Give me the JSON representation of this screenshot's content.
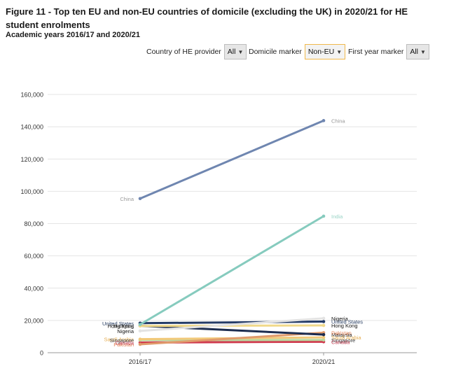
{
  "title": "Figure 11 - Top ten EU and non-EU countries of domicile (excluding the UK) in 2020/21 for HE student enrolments",
  "subtitle": "Academic years 2016/17 and 2020/21",
  "filters": [
    {
      "label": "Country of HE provider",
      "value": "All",
      "active": false
    },
    {
      "label": "Domicile marker",
      "value": "Non-EU",
      "active": true
    },
    {
      "label": "First year marker",
      "value": "All",
      "active": false
    }
  ],
  "chart_data": {
    "type": "line",
    "categories": [
      "2016/17",
      "2020/21"
    ],
    "ylim": [
      0,
      160000
    ],
    "yticks": [
      0,
      20000,
      40000,
      60000,
      80000,
      100000,
      120000,
      140000,
      160000
    ],
    "ytick_labels": [
      "0",
      "20,000",
      "40,000",
      "60,000",
      "80,000",
      "100,000",
      "120,000",
      "140,000",
      "160,000"
    ],
    "grid": true,
    "series": [
      {
        "name": "China",
        "values": [
          95500,
          143800
        ],
        "color": "#6f86b0",
        "width": 3,
        "show_left": true,
        "show_right": true,
        "label_color": "#999999"
      },
      {
        "name": "India",
        "values": [
          17500,
          84600
        ],
        "color": "#86cbbe",
        "width": 3,
        "show_left": false,
        "show_right": true,
        "label_color": "#9ad4c6"
      },
      {
        "name": "Nigeria",
        "values": [
          13500,
          21300
        ],
        "color": "#e3e3e3",
        "width": 3,
        "show_left": true,
        "show_right": true,
        "label_color": "#111111"
      },
      {
        "name": "United States",
        "values": [
          18300,
          19300
        ],
        "color": "#243b66",
        "width": 3,
        "show_left": true,
        "show_right": true,
        "label_color": "#1e355c"
      },
      {
        "name": "Hong Kong",
        "values": [
          16600,
          16900
        ],
        "color": "#f1d98a",
        "width": 3,
        "show_left": true,
        "show_right": true,
        "label_color": "#111111"
      },
      {
        "name": "Malaysia",
        "values": [
          16700,
          11200
        ],
        "color": "#1c2c4f",
        "width": 3,
        "show_left": true,
        "show_right": true,
        "label_color": "#222222"
      },
      {
        "name": "Pakistan",
        "values": [
          5200,
          12400
        ],
        "color": "#e09b6c",
        "width": 3,
        "show_left": true,
        "show_right": true,
        "label_color": "#e07b4e"
      },
      {
        "name": "Saudi Arabia",
        "values": [
          8400,
          9500
        ],
        "color": "#f2c97a",
        "width": 3,
        "show_left": true,
        "show_right": true,
        "label_color": "#e4ac50"
      },
      {
        "name": "Singapore",
        "values": [
          7800,
          7900
        ],
        "color": "#b9d7a0",
        "width": 3,
        "show_left": true,
        "show_right": true,
        "label_color": "#333333"
      },
      {
        "name": "Canada",
        "values": [
          6300,
          6800
        ],
        "color": "#d03a4e",
        "width": 3,
        "show_left": true,
        "show_right": true,
        "label_color": "#c23a50"
      }
    ]
  }
}
